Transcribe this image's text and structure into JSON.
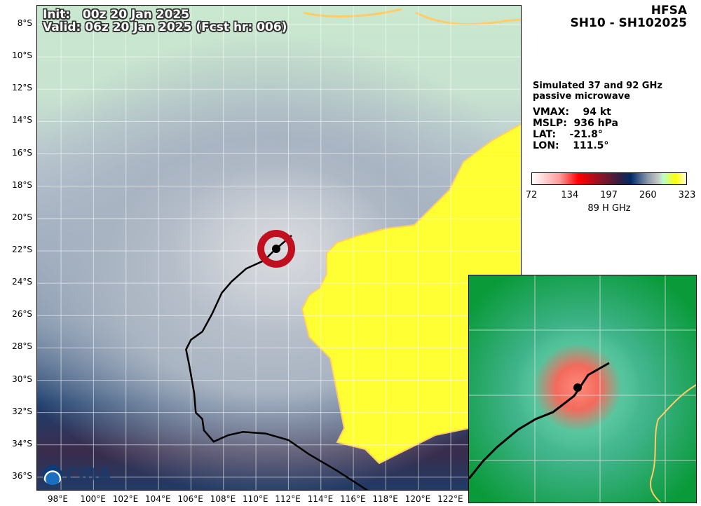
{
  "header": {
    "model": "HFSA",
    "storm": "SH10 - SH102025"
  },
  "overlay": {
    "init": "Init:   00z 20 Jan 2025",
    "valid": "Valid: 06z 20 Jan 2025 (Fcst hr: 006)"
  },
  "info": {
    "product": "Simulated 37 and 92 GHz\npassive microwave",
    "vmax": "VMAX:    94 kt",
    "mslp": "MSLP:  936 hPa",
    "lat": "LAT:    -21.8°",
    "lon": "LON:    111.5°"
  },
  "storm_position": {
    "lat": -21.8,
    "lon": 111.5
  },
  "colorbar": {
    "label": "89 H GHz",
    "ticks": [
      "72",
      "134",
      "197",
      "260",
      "323"
    ],
    "range": [
      72,
      323
    ],
    "colors": [
      "#ffffff",
      "#ff0000",
      "#2a2046",
      "#002a66",
      "#c8c8c8",
      "#ffff00",
      "#ffffdd"
    ]
  },
  "map": {
    "lon_labels": [
      "98°E",
      "100°E",
      "102°E",
      "104°E",
      "106°E",
      "108°E",
      "110°E",
      "112°E",
      "114°E",
      "116°E",
      "118°E",
      "120°E",
      "122°E"
    ],
    "lat_labels": [
      "8°S",
      "10°S",
      "12°S",
      "14°S",
      "16°S",
      "18°S",
      "20°S",
      "22°S",
      "24°S",
      "26°S",
      "28°S",
      "30°S",
      "32°S",
      "34°S",
      "36°S"
    ],
    "land_color": "#ffff33",
    "coast_color": "#ffcc66",
    "track_color": "#000000"
  },
  "track": [
    [
      112.2,
      -21.05
    ],
    [
      111.1,
      -22.0
    ],
    [
      110.5,
      -22.6
    ],
    [
      109.4,
      -23.1
    ],
    [
      108.5,
      -23.9
    ],
    [
      107.9,
      -24.6
    ],
    [
      107.3,
      -25.9
    ],
    [
      106.7,
      -27.0
    ],
    [
      106.0,
      -27.5
    ],
    [
      105.7,
      -28.1
    ],
    [
      105.9,
      -29.1
    ],
    [
      106.2,
      -30.8
    ],
    [
      106.3,
      -32.0
    ],
    [
      106.7,
      -32.4
    ],
    [
      106.8,
      -33.1
    ],
    [
      107.4,
      -33.8
    ],
    [
      108.3,
      -33.4
    ],
    [
      109.2,
      -33.2
    ],
    [
      110.6,
      -33.3
    ],
    [
      112.0,
      -33.7
    ],
    [
      113.3,
      -34.6
    ],
    [
      115.0,
      -35.6
    ],
    [
      117.0,
      -36.9
    ]
  ],
  "logo": "CIRA"
}
